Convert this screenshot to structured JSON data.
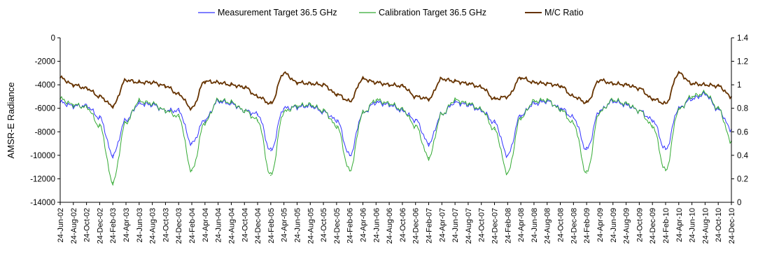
{
  "chart_data": {
    "type": "line",
    "title": "",
    "ylabel": "AMSR-E Radiance",
    "y2label": "",
    "ylim": [
      -14000,
      0
    ],
    "y2lim": [
      0,
      1.4
    ],
    "grid": false,
    "legend_position": "top",
    "yticks": [
      "0",
      "-2000",
      "-4000",
      "-6000",
      "-8000",
      "-10000",
      "-12000",
      "-14000"
    ],
    "y2ticks": [
      "1.4",
      "1.2",
      "1",
      "0.8",
      "0.6",
      "0.4",
      "0.2",
      "0"
    ],
    "xtick_labels": [
      "24-Jun-02",
      "24-Aug-02",
      "24-Oct-02",
      "24-Dec-02",
      "24-Feb-03",
      "24-Apr-03",
      "24-Jun-03",
      "24-Aug-03",
      "24-Oct-03",
      "24-Dec-03",
      "24-Feb-04",
      "24-Apr-04",
      "24-Jun-04",
      "24-Aug-04",
      "24-Oct-04",
      "24-Dec-04",
      "24-Feb-05",
      "24-Apr-05",
      "24-Jun-05",
      "24-Aug-05",
      "24-Oct-05",
      "24-Dec-05",
      "24-Feb-06",
      "24-Apr-06",
      "24-Jun-06",
      "24-Aug-06",
      "24-Oct-06",
      "24-Dec-06",
      "24-Feb-07",
      "24-Apr-07",
      "24-Jun-07",
      "24-Aug-07",
      "24-Oct-07",
      "24-Dec-07",
      "24-Feb-08",
      "24-Apr-08",
      "24-Jun-08",
      "24-Aug-08",
      "24-Oct-08",
      "24-Dec-08",
      "24-Feb-09",
      "24-Apr-09",
      "24-Jun-09",
      "24-Aug-09",
      "24-Oct-09",
      "24-Dec-09",
      "24-Feb-10",
      "24-Apr-10",
      "24-Jun-10",
      "24-Aug-10",
      "24-Oct-10",
      "24-Dec-10"
    ],
    "x": [
      "2002-06-24",
      "2002-08-24",
      "2002-10-24",
      "2002-12-24",
      "2003-02-24",
      "2003-04-24",
      "2003-06-24",
      "2003-08-24",
      "2003-10-24",
      "2003-12-24",
      "2004-02-24",
      "2004-04-24",
      "2004-06-24",
      "2004-08-24",
      "2004-10-24",
      "2004-12-24",
      "2005-02-24",
      "2005-04-24",
      "2005-06-24",
      "2005-08-24",
      "2005-10-24",
      "2005-12-24",
      "2006-02-24",
      "2006-04-24",
      "2006-06-24",
      "2006-08-24",
      "2006-10-24",
      "2006-12-24",
      "2007-02-24",
      "2007-04-24",
      "2007-06-24",
      "2007-08-24",
      "2007-10-24",
      "2007-12-24",
      "2008-02-24",
      "2008-04-24",
      "2008-06-24",
      "2008-08-24",
      "2008-10-24",
      "2008-12-24",
      "2009-02-24",
      "2009-04-24",
      "2009-06-24",
      "2009-08-24",
      "2009-10-24",
      "2009-12-24",
      "2010-02-24",
      "2010-04-24",
      "2010-06-24",
      "2010-08-24",
      "2010-10-24",
      "2010-12-24"
    ],
    "series": [
      {
        "name": "Measurement Target 36.5 GHz",
        "color": "#3333ff",
        "axis": "left",
        "values": [
          -5500,
          -5800,
          -5800,
          -6800,
          -10000,
          -7000,
          -5600,
          -5700,
          -6200,
          -6200,
          -9000,
          -7000,
          -5400,
          -5600,
          -6200,
          -6500,
          -9600,
          -6000,
          -5900,
          -5800,
          -6300,
          -7000,
          -10000,
          -6400,
          -5500,
          -5700,
          -6200,
          -7000,
          -9000,
          -6500,
          -5500,
          -5700,
          -6200,
          -7200,
          -10000,
          -6600,
          -5600,
          -5400,
          -6000,
          -6800,
          -9500,
          -6200,
          -5400,
          -5700,
          -6200,
          -7000,
          -9500,
          -6000,
          -5200,
          -4800,
          -6100,
          -7800
        ]
      },
      {
        "name": "Calibration Target 36.5 GHz",
        "color": "#33aa33",
        "axis": "left",
        "values": [
          -5200,
          -5700,
          -5900,
          -7500,
          -12300,
          -7200,
          -5400,
          -5600,
          -6200,
          -6700,
          -11300,
          -7200,
          -5300,
          -5500,
          -6200,
          -7000,
          -11700,
          -6300,
          -5800,
          -5700,
          -6200,
          -7500,
          -11300,
          -6400,
          -5300,
          -5600,
          -6100,
          -7500,
          -10200,
          -6500,
          -5300,
          -5600,
          -6100,
          -7800,
          -11500,
          -6800,
          -5400,
          -5300,
          -6100,
          -7300,
          -11500,
          -6300,
          -5300,
          -5600,
          -6200,
          -7500,
          -11300,
          -6100,
          -5000,
          -4700,
          -6000,
          -8800
        ]
      },
      {
        "name": "M/C Ratio",
        "color": "#663300",
        "axis": "right",
        "values": [
          1.06,
          1.0,
          0.97,
          0.9,
          0.82,
          1.04,
          1.02,
          1.02,
          0.99,
          0.92,
          0.8,
          1.03,
          1.02,
          1.0,
          0.98,
          0.9,
          0.84,
          1.1,
          1.02,
          1.01,
          1.0,
          0.92,
          0.86,
          1.05,
          1.02,
          1.0,
          0.99,
          0.9,
          0.88,
          1.05,
          1.03,
          1.01,
          0.98,
          0.88,
          0.9,
          1.06,
          1.02,
          1.01,
          0.99,
          0.9,
          0.85,
          1.04,
          1.01,
          1.0,
          0.97,
          0.88,
          0.84,
          1.1,
          1.01,
          1.0,
          0.99,
          0.9
        ]
      }
    ]
  }
}
